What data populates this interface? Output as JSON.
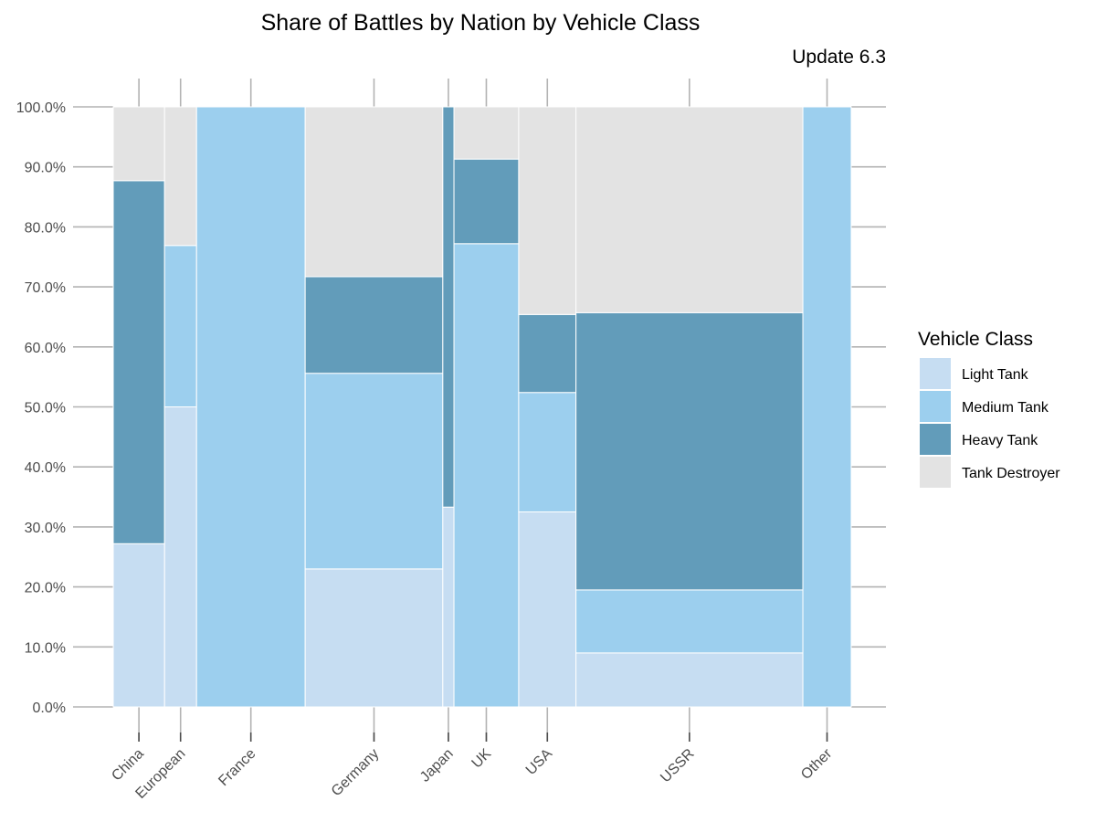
{
  "chart_data": {
    "type": "mosaic",
    "title": "Share of Battles by Nation by Vehicle Class",
    "subtitle": "Update 6.3",
    "xlabel": "",
    "ylabel": "",
    "ylim": [
      0,
      1
    ],
    "y_ticks": [
      0,
      0.1,
      0.2,
      0.3,
      0.4,
      0.5,
      0.6,
      0.7,
      0.8,
      0.9,
      1.0
    ],
    "y_tick_labels": [
      "0.0%",
      "10.0%",
      "20.0%",
      "30.0%",
      "40.0%",
      "50.0%",
      "60.0%",
      "70.0%",
      "80.0%",
      "90.0%",
      "100.0%"
    ],
    "legend": {
      "title": "Vehicle Class",
      "position": "right",
      "entries": [
        {
          "name": "Light Tank",
          "color": "#c6ddf2"
        },
        {
          "name": "Medium Tank",
          "color": "#9ccfee"
        },
        {
          "name": "Heavy Tank",
          "color": "#629cba"
        },
        {
          "name": "Tank Destroyer",
          "color": "#e3e3e3"
        }
      ]
    },
    "categories": [
      "China",
      "European",
      "France",
      "Germany",
      "Japan",
      "UK",
      "USA",
      "USSR",
      "Other"
    ],
    "category_widths_share": [
      0.069,
      0.043,
      0.146,
      0.185,
      0.015,
      0.087,
      0.077,
      0.305,
      0.065
    ],
    "series": [
      {
        "name": "Light Tank",
        "values": [
          0.272,
          0.5,
          0.0,
          0.23,
          0.333,
          0.0,
          0.325,
          0.09,
          0.0
        ]
      },
      {
        "name": "Medium Tank",
        "values": [
          0.0,
          0.269,
          1.0,
          0.326,
          0.0,
          0.772,
          0.199,
          0.105,
          1.0
        ]
      },
      {
        "name": "Heavy Tank",
        "values": [
          0.605,
          0.0,
          0.0,
          0.161,
          0.667,
          0.141,
          0.13,
          0.462,
          0.0
        ]
      },
      {
        "name": "Tank Destroyer",
        "values": [
          0.123,
          0.231,
          0.0,
          0.283,
          0.0,
          0.087,
          0.346,
          0.343,
          0.0
        ]
      }
    ],
    "grid": false
  }
}
